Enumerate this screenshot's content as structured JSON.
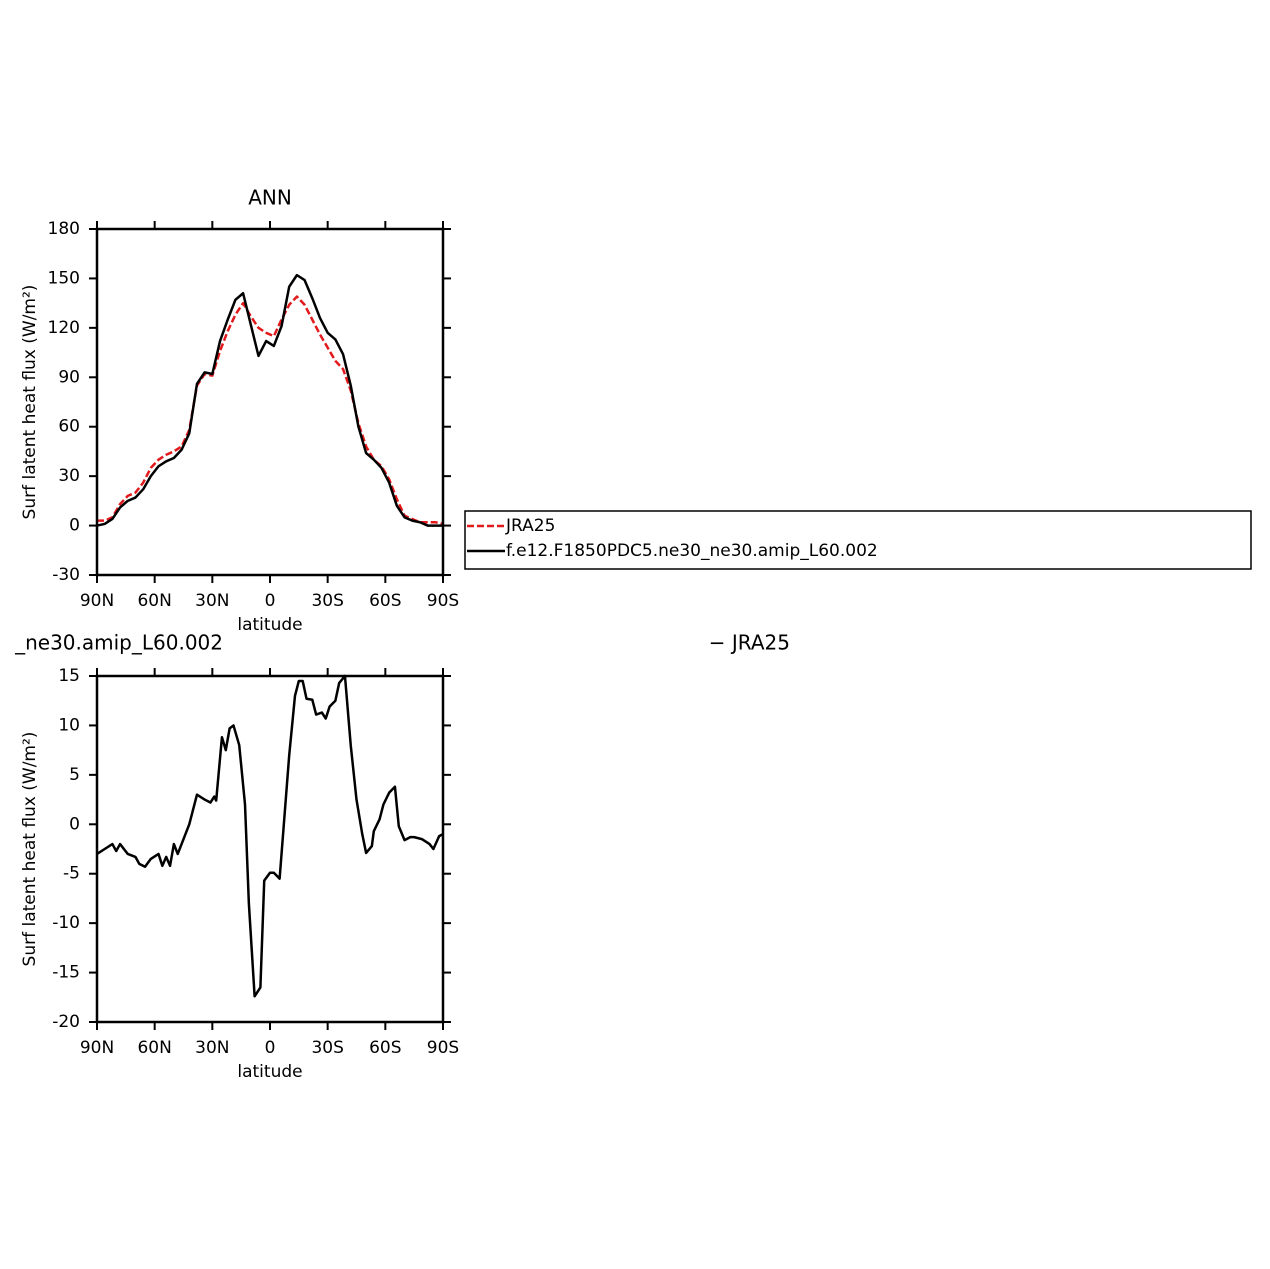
{
  "chart_data": [
    {
      "type": "line",
      "title": "ANN",
      "xlabel": "latitude",
      "ylabel": "Surf latent heat flux (W/m²)",
      "x": [
        90,
        86,
        82,
        78,
        74,
        70,
        66,
        62,
        58,
        54,
        50,
        46,
        42,
        38,
        34,
        30,
        26,
        22,
        18,
        14,
        10,
        6,
        2,
        -2,
        -6,
        -10,
        -14,
        -18,
        -22,
        -26,
        -30,
        -34,
        -38,
        -42,
        -46,
        -50,
        -54,
        -58,
        -62,
        -66,
        -70,
        -74,
        -78,
        -82,
        -86,
        -90
      ],
      "series": [
        {
          "name": "JRA25",
          "color": "#e31a1c",
          "dash": true,
          "values": [
            3,
            3,
            5,
            13,
            18,
            20,
            26,
            35,
            40,
            43,
            45,
            48,
            58,
            85,
            92,
            91,
            106,
            118,
            128,
            135,
            127,
            120,
            117,
            115,
            125,
            134,
            139,
            134,
            125,
            116,
            108,
            100,
            95,
            82,
            62,
            48,
            40,
            36,
            28,
            16,
            6,
            4,
            2,
            2,
            2,
            1
          ]
        },
        {
          "name": "f.e12.F1850PDC5.ne30_ne30.amip_L60.002",
          "color": "#000000",
          "dash": false,
          "values": [
            0,
            1,
            4,
            11,
            15,
            17,
            22,
            30,
            36,
            39,
            41,
            46,
            56,
            86,
            93,
            92,
            112,
            125,
            137,
            141,
            122,
            103,
            112,
            109,
            121,
            145,
            152,
            149,
            138,
            126,
            117,
            113,
            104,
            85,
            60,
            44,
            40,
            35,
            26,
            12,
            5,
            3,
            2,
            0,
            0,
            0
          ]
        }
      ],
      "xlim": [
        90,
        -90
      ],
      "xticks": [
        {
          "value": 90,
          "label": "90N"
        },
        {
          "value": 60,
          "label": "60N"
        },
        {
          "value": 30,
          "label": "30N"
        },
        0,
        {
          "value": -30,
          "label": "30S"
        },
        {
          "value": -60,
          "label": "60S"
        },
        {
          "value": -90,
          "label": "90S"
        }
      ],
      "ylim": [
        -30,
        180
      ],
      "yticks": [
        -30,
        0,
        30,
        60,
        90,
        120,
        150,
        180
      ]
    },
    {
      "type": "line",
      "left_title": "_ne30.amip_L60.002",
      "right_title": "− JRA25",
      "xlabel": "latitude",
      "ylabel": "Surf latent heat flux (W/m²)",
      "x": [
        90,
        86,
        82,
        80,
        78,
        74,
        70,
        68,
        65,
        62,
        58,
        56,
        54,
        52,
        50,
        48,
        42,
        38,
        34,
        31,
        29,
        28,
        25,
        23,
        21,
        19,
        16,
        13,
        11,
        8,
        5,
        3,
        0,
        -2,
        -5,
        -8,
        -10,
        -13,
        -15,
        -17,
        -19,
        -22,
        -24,
        -27,
        -29,
        -31,
        -34,
        -36,
        -39,
        -42,
        -45,
        -48,
        -50,
        -53,
        -54,
        -57,
        -59,
        -62,
        -65,
        -67,
        -70,
        -73,
        -75,
        -79,
        -83,
        -85,
        -88,
        -90
      ],
      "series": [
        {
          "color": "#000000",
          "dash": false,
          "values": [
            -3,
            -2.5,
            -2,
            -2.7,
            -2,
            -3,
            -3.3,
            -4,
            -4.3,
            -3.5,
            -3,
            -4.2,
            -3.3,
            -4.2,
            -2,
            -3,
            0,
            3,
            2.5,
            2.2,
            2.8,
            2.4,
            8.8,
            7.5,
            9.7,
            10,
            8,
            2,
            -8,
            -17.4,
            -16.5,
            -5.7,
            -4.9,
            -4.9,
            -5.5,
            2,
            7,
            13,
            14.5,
            14.5,
            12.7,
            12.6,
            11.1,
            11.3,
            10.7,
            11.9,
            12.5,
            14.3,
            15,
            8,
            2.5,
            -1,
            -2.9,
            -2.2,
            -0.7,
            0.5,
            2,
            3.2,
            3.8,
            -0.2,
            -1.6,
            -1.3,
            -1.3,
            -1.5,
            -2,
            -2.5,
            -1.2,
            -1
          ]
        }
      ],
      "xlim": [
        90,
        -90
      ],
      "xticks": [
        {
          "value": 90,
          "label": "90N"
        },
        {
          "value": 60,
          "label": "60N"
        },
        {
          "value": 30,
          "label": "30N"
        },
        0,
        {
          "value": -30,
          "label": "30S"
        },
        {
          "value": -60,
          "label": "60S"
        },
        {
          "value": -90,
          "label": "90S"
        }
      ],
      "ylim": [
        -20,
        15
      ],
      "yticks": [
        -20,
        -15,
        -10,
        -5,
        0,
        5,
        10,
        15
      ]
    }
  ]
}
